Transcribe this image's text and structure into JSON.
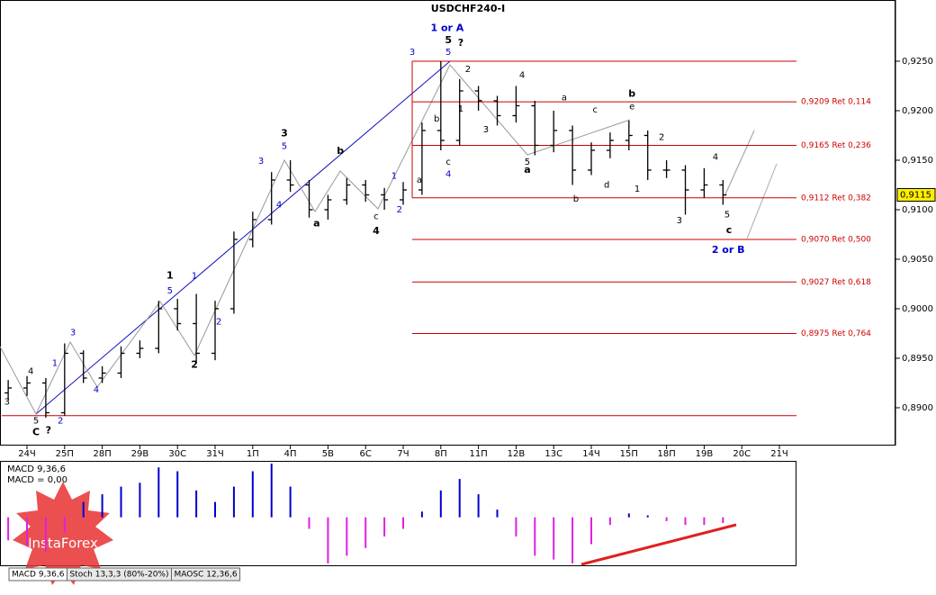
{
  "chart_data": {
    "type": "ohlc",
    "title": "USDCHF240-I",
    "xlim": [
      -0.718,
      23.086
    ],
    "ylim": [
      0.88618,
      0.93118
    ],
    "xticks": [
      {
        "value": 0,
        "label": "24Ч"
      },
      {
        "value": 1,
        "label": "25П"
      },
      {
        "value": 2,
        "label": "28П"
      },
      {
        "value": 3,
        "label": "29В"
      },
      {
        "value": 4,
        "label": "30С"
      },
      {
        "value": 5,
        "label": "31Ч"
      },
      {
        "value": 6,
        "label": "1П"
      },
      {
        "value": 7,
        "label": "4П"
      },
      {
        "value": 8,
        "label": "5В"
      },
      {
        "value": 9,
        "label": "6С"
      },
      {
        "value": 10,
        "label": "7Ч"
      },
      {
        "value": 11,
        "label": "8П"
      },
      {
        "value": 12,
        "label": "11П"
      },
      {
        "value": 13,
        "label": "12В"
      },
      {
        "value": 14,
        "label": "13С"
      },
      {
        "value": 15,
        "label": "14Ч"
      },
      {
        "value": 16,
        "label": "15П"
      },
      {
        "value": 17,
        "label": "18П"
      },
      {
        "value": 18,
        "label": "19В"
      },
      {
        "value": 19,
        "label": "20С"
      },
      {
        "value": 20,
        "label": "21Ч"
      }
    ],
    "yticks": [
      {
        "value": 0.925,
        "label": "0,9250"
      },
      {
        "value": 0.92,
        "label": "0,9200"
      },
      {
        "value": 0.915,
        "label": "0,9150"
      },
      {
        "value": 0.91,
        "label": "0,9100"
      },
      {
        "value": 0.905,
        "label": "0,9050"
      },
      {
        "value": 0.9,
        "label": "0,9000"
      },
      {
        "value": 0.895,
        "label": "0,8950"
      },
      {
        "value": 0.89,
        "label": "0,8900"
      }
    ],
    "x": [
      -0.5,
      0,
      0.5,
      1,
      1.5,
      2,
      2.5,
      3,
      3.5,
      4,
      4.5,
      5,
      5.5,
      6,
      6.5,
      7,
      7.5,
      8,
      8.5,
      9,
      9.5,
      10,
      10.5,
      11,
      11.5,
      12,
      12.5,
      13,
      13.5,
      14,
      14.5,
      15,
      15.5,
      16,
      16.5,
      17,
      17.5,
      18,
      18.5
    ],
    "open": [
      0.8915,
      0.892,
      0.8925,
      0.8895,
      0.8955,
      0.893,
      0.8935,
      0.8955,
      0.896,
      0.9,
      0.8985,
      0.8955,
      0.9,
      0.907,
      0.909,
      0.913,
      0.9125,
      0.91,
      0.911,
      0.9125,
      0.9115,
      0.911,
      0.912,
      0.918,
      0.917,
      0.922,
      0.921,
      0.9195,
      0.9205,
      0.9165,
      0.918,
      0.914,
      0.916,
      0.917,
      0.9175,
      0.914,
      0.914,
      0.912,
      0.9125
    ],
    "high": [
      0.8928,
      0.8932,
      0.893,
      0.8965,
      0.8958,
      0.8942,
      0.8962,
      0.8968,
      0.9008,
      0.901,
      0.9015,
      0.9008,
      0.9078,
      0.9098,
      0.9138,
      0.915,
      0.913,
      0.9115,
      0.9132,
      0.913,
      0.9122,
      0.9128,
      0.9188,
      0.925,
      0.9232,
      0.9225,
      0.9215,
      0.9225,
      0.921,
      0.92,
      0.9185,
      0.9168,
      0.9178,
      0.919,
      0.918,
      0.915,
      0.9145,
      0.9142,
      0.913
    ],
    "low": [
      0.8908,
      0.8912,
      0.889,
      0.8892,
      0.8925,
      0.8925,
      0.893,
      0.895,
      0.8955,
      0.8978,
      0.8945,
      0.8948,
      0.8995,
      0.9062,
      0.9085,
      0.9118,
      0.9092,
      0.909,
      0.9105,
      0.9108,
      0.91,
      0.9105,
      0.9115,
      0.916,
      0.9165,
      0.92,
      0.9185,
      0.9188,
      0.9155,
      0.9158,
      0.9125,
      0.9135,
      0.9152,
      0.916,
      0.913,
      0.9132,
      0.9095,
      0.9112,
      0.9105
    ],
    "close": [
      0.892,
      0.8925,
      0.8895,
      0.8955,
      0.893,
      0.8935,
      0.8955,
      0.896,
      0.9,
      0.8985,
      0.8955,
      0.9,
      0.907,
      0.909,
      0.913,
      0.9125,
      0.91,
      0.911,
      0.9125,
      0.9115,
      0.911,
      0.912,
      0.918,
      0.917,
      0.922,
      0.921,
      0.9195,
      0.9205,
      0.9165,
      0.918,
      0.914,
      0.916,
      0.917,
      0.9175,
      0.914,
      0.914,
      0.912,
      0.9125,
      0.9115
    ],
    "bar_color": "#000000",
    "levels": [
      0.925,
      {
        "value": 0.9209,
        "label": "0,9209 Ret 0,114"
      },
      {
        "value": 0.9165,
        "label": "0,9165 Ret 0,236"
      },
      {
        "value": 0.9112,
        "label": "0,9112 Ret 0,382"
      },
      {
        "value": 0.907,
        "label": "0,9070 Ret 0,500"
      },
      {
        "value": 0.9027,
        "label": "0,9027 Ret 0,618"
      },
      {
        "value": 0.8975,
        "label": "0,8975 Ret 0,764"
      },
      0.8892
    ],
    "level_color": "#cc0000",
    "current_price": {
      "value": 0.9115,
      "label": "0,9115"
    },
    "annotations": [
      {
        "text": "1 or A",
        "color": "#0000cc",
        "bold": true,
        "x": 11.17,
        "y": 0.9283
      },
      {
        "text": "5",
        "color": "#000000",
        "bold": true,
        "x": 11.2,
        "y": 0.9271
      },
      {
        "text": "5",
        "color": "#0000cc",
        "bold": false,
        "x": 11.2,
        "y": 0.9259
      },
      {
        "text": "?",
        "color": "#000000",
        "bold": true,
        "x": 11.53,
        "y": 0.9268
      },
      {
        "text": "3",
        "color": "#0000cc",
        "bold": false,
        "x": 10.24,
        "y": 0.9259
      },
      {
        "text": "C",
        "color": "#000000",
        "bold": true,
        "x": 0.24,
        "y": 0.8875
      },
      {
        "text": "?",
        "color": "#000000",
        "bold": true,
        "x": 0.57,
        "y": 0.8877
      },
      {
        "text": "5",
        "color": "#000000",
        "bold": false,
        "x": 0.24,
        "y": 0.8887
      },
      {
        "text": "2",
        "color": "#0000cc",
        "bold": false,
        "x": 0.89,
        "y": 0.8887
      },
      {
        "text": "3",
        "color": "#000000",
        "bold": false,
        "x": -0.53,
        "y": 0.8906
      },
      {
        "text": "4",
        "color": "#000000",
        "bold": false,
        "x": 0.1,
        "y": 0.8937
      },
      {
        "text": "1",
        "color": "#0000cc",
        "bold": false,
        "x": 0.74,
        "y": 0.8945
      },
      {
        "text": "3",
        "color": "#0000cc",
        "bold": false,
        "x": 1.22,
        "y": 0.8976
      },
      {
        "text": "4",
        "color": "#0000cc",
        "bold": false,
        "x": 1.84,
        "y": 0.8918
      },
      {
        "text": "1",
        "color": "#000000",
        "bold": true,
        "x": 3.8,
        "y": 0.9033
      },
      {
        "text": "5",
        "color": "#0000cc",
        "bold": false,
        "x": 3.8,
        "y": 0.9018
      },
      {
        "text": "1",
        "color": "#0000cc",
        "bold": false,
        "x": 4.45,
        "y": 0.9033
      },
      {
        "text": "2",
        "color": "#000000",
        "bold": true,
        "x": 4.45,
        "y": 0.8943
      },
      {
        "text": "2",
        "color": "#0000cc",
        "bold": false,
        "x": 5.1,
        "y": 0.8987
      },
      {
        "text": "3",
        "color": "#0000cc",
        "bold": false,
        "x": 6.22,
        "y": 0.9149
      },
      {
        "text": "4",
        "color": "#0000cc",
        "bold": false,
        "x": 6.7,
        "y": 0.9105
      },
      {
        "text": "3",
        "color": "#000000",
        "bold": true,
        "x": 6.84,
        "y": 0.9177
      },
      {
        "text": "5",
        "color": "#0000cc",
        "bold": false,
        "x": 6.84,
        "y": 0.9164
      },
      {
        "text": "a",
        "color": "#000000",
        "bold": true,
        "x": 7.7,
        "y": 0.9086
      },
      {
        "text": "b",
        "color": "#000000",
        "bold": true,
        "x": 8.33,
        "y": 0.9159
      },
      {
        "text": "c",
        "color": "#000000",
        "bold": false,
        "x": 9.28,
        "y": 0.9093
      },
      {
        "text": "4",
        "color": "#000000",
        "bold": true,
        "x": 9.28,
        "y": 0.9078
      },
      {
        "text": "1",
        "color": "#0000cc",
        "bold": false,
        "x": 9.76,
        "y": 0.9134
      },
      {
        "text": "2",
        "color": "#0000cc",
        "bold": false,
        "x": 9.9,
        "y": 0.91
      },
      {
        "text": "a",
        "color": "#000000",
        "bold": false,
        "x": 10.43,
        "y": 0.913
      },
      {
        "text": "b",
        "color": "#000000",
        "bold": false,
        "x": 10.89,
        "y": 0.9192
      },
      {
        "text": "c",
        "color": "#000000",
        "bold": false,
        "x": 11.2,
        "y": 0.9148
      },
      {
        "text": "4",
        "color": "#0000cc",
        "bold": false,
        "x": 11.2,
        "y": 0.9136
      },
      {
        "text": "2",
        "color": "#000000",
        "bold": false,
        "x": 11.72,
        "y": 0.9242
      },
      {
        "text": "1",
        "color": "#000000",
        "bold": false,
        "x": 11.53,
        "y": 0.9202
      },
      {
        "text": "3",
        "color": "#000000",
        "bold": false,
        "x": 12.2,
        "y": 0.9181
      },
      {
        "text": "4",
        "color": "#000000",
        "bold": false,
        "x": 13.16,
        "y": 0.9236
      },
      {
        "text": "5",
        "color": "#000000",
        "bold": false,
        "x": 13.3,
        "y": 0.9148
      },
      {
        "text": "a",
        "color": "#000000",
        "bold": true,
        "x": 13.3,
        "y": 0.914
      },
      {
        "text": "a",
        "color": "#000000",
        "bold": false,
        "x": 14.28,
        "y": 0.9213
      },
      {
        "text": "c",
        "color": "#000000",
        "bold": false,
        "x": 15.1,
        "y": 0.9201
      },
      {
        "text": "b",
        "color": "#000000",
        "bold": false,
        "x": 14.59,
        "y": 0.9111
      },
      {
        "text": "d",
        "color": "#000000",
        "bold": false,
        "x": 15.41,
        "y": 0.9125
      },
      {
        "text": "b",
        "color": "#000000",
        "bold": true,
        "x": 16.08,
        "y": 0.9217
      },
      {
        "text": "e",
        "color": "#000000",
        "bold": false,
        "x": 16.08,
        "y": 0.9204
      },
      {
        "text": "1",
        "color": "#000000",
        "bold": false,
        "x": 16.22,
        "y": 0.9121
      },
      {
        "text": "2",
        "color": "#000000",
        "bold": false,
        "x": 16.87,
        "y": 0.9173
      },
      {
        "text": "3",
        "color": "#000000",
        "bold": false,
        "x": 17.34,
        "y": 0.9089
      },
      {
        "text": "4",
        "color": "#000000",
        "bold": false,
        "x": 18.3,
        "y": 0.9153
      },
      {
        "text": "5",
        "color": "#000000",
        "bold": false,
        "x": 18.61,
        "y": 0.9095
      },
      {
        "text": "c",
        "color": "#000000",
        "bold": true,
        "x": 18.66,
        "y": 0.9079
      },
      {
        "text": "2 or B",
        "color": "#0000cc",
        "bold": true,
        "x": 18.64,
        "y": 0.9059
      }
    ],
    "macd": {
      "title": "MACD 9,36,6",
      "value_label": "MACD = 0,00",
      "ylim": [
        -0.0025,
        0.0028
      ],
      "positive_color": "#0000cc",
      "negative_color": "#e020e0",
      "values": [
        -0.0012,
        -0.0015,
        -0.0018,
        -0.0008,
        0.0008,
        0.0012,
        0.0016,
        0.0018,
        0.0026,
        0.0024,
        0.0014,
        0.0008,
        0.0016,
        0.0024,
        0.0028,
        0.0016,
        -0.0006,
        -0.0024,
        -0.002,
        -0.0016,
        -0.001,
        -0.0006,
        0.0003,
        0.0014,
        0.002,
        0.0012,
        0.0004,
        -0.001,
        -0.002,
        -0.0022,
        -0.0024,
        -0.0014,
        -0.0004,
        0.0002,
        0.0001,
        -0.0002,
        -0.0004,
        -0.0004,
        -0.0003
      ]
    },
    "tabs": [
      "MACD 9,36,6",
      "Stoch 13,3,3 (80%-20%)",
      "MAOSC 12,36,6"
    ],
    "watermark": "InstaForex"
  }
}
